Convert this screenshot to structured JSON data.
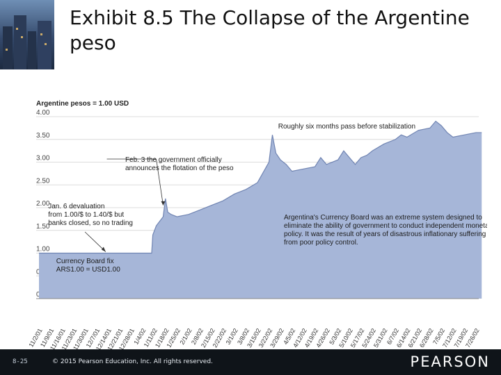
{
  "slide": {
    "title": "Exhibit 8.5  The Collapse of the Argentine peso",
    "page_number": "8-25",
    "copyright": "© 2015 Pearson Education, Inc. All rights reserved.",
    "brand": "PEARSON"
  },
  "colors": {
    "area_fill": "#a6b6d8",
    "area_line": "#7084b2",
    "plot_bg": "#ffffff",
    "grid": "#dcdcdc",
    "footer_bg": "#0f1419"
  },
  "chart_data": {
    "type": "area",
    "title": "",
    "ylabel": "Argentine pesos = 1.00 USD",
    "xlabel": "",
    "ylim": [
      0,
      4
    ],
    "yticks": [
      "0.00",
      "0.50",
      "1.00",
      "1.50",
      "2.00",
      "2.50",
      "3.00",
      "3.50",
      "4.00"
    ],
    "grid": true,
    "xticks": [
      "11/2/01",
      "11/9/01",
      "11/16/01",
      "11/23/01",
      "11/30/01",
      "12/7/01",
      "12/14/01",
      "12/21/01",
      "12/28/01",
      "1/4/02",
      "1/11/02",
      "1/18/02",
      "1/25/02",
      "2/1/02",
      "2/8/02",
      "2/15/02",
      "2/22/02",
      "3/1/02",
      "3/8/02",
      "3/15/02",
      "3/22/02",
      "3/29/02",
      "4/5/02",
      "4/12/02",
      "4/19/02",
      "4/26/02",
      "5/3/02",
      "5/10/02",
      "5/17/02",
      "5/24/02",
      "5/31/02",
      "6/7/02",
      "6/14/02",
      "6/21/02",
      "6/28/02",
      "7/5/02",
      "7/12/02",
      "7/19/02",
      "7/26/02"
    ],
    "series": [
      {
        "values": [
          [
            0,
            1.0
          ],
          [
            9.8,
            1.0
          ],
          [
            9.9,
            1.4
          ],
          [
            10.2,
            1.6
          ],
          [
            10.5,
            1.7
          ],
          [
            10.8,
            1.8
          ],
          [
            11.0,
            2.2
          ],
          [
            11.2,
            1.9
          ],
          [
            11.5,
            1.85
          ],
          [
            12,
            1.8
          ],
          [
            13,
            1.85
          ],
          [
            14,
            1.95
          ],
          [
            15,
            2.05
          ],
          [
            16,
            2.15
          ],
          [
            17,
            2.3
          ],
          [
            18,
            2.4
          ],
          [
            19,
            2.55
          ],
          [
            20,
            3.0
          ],
          [
            20.3,
            3.6
          ],
          [
            20.6,
            3.2
          ],
          [
            21,
            3.05
          ],
          [
            21.5,
            2.95
          ],
          [
            22,
            2.8
          ],
          [
            23,
            2.85
          ],
          [
            24,
            2.9
          ],
          [
            24.5,
            3.1
          ],
          [
            25,
            2.95
          ],
          [
            26,
            3.05
          ],
          [
            26.5,
            3.25
          ],
          [
            27,
            3.1
          ],
          [
            27.5,
            2.95
          ],
          [
            28,
            3.1
          ],
          [
            28.5,
            3.15
          ],
          [
            29,
            3.25
          ],
          [
            30,
            3.4
          ],
          [
            31,
            3.5
          ],
          [
            31.5,
            3.6
          ],
          [
            32,
            3.55
          ],
          [
            33,
            3.7
          ],
          [
            34,
            3.75
          ],
          [
            34.5,
            3.9
          ],
          [
            35,
            3.8
          ],
          [
            35.5,
            3.65
          ],
          [
            36,
            3.55
          ],
          [
            37,
            3.6
          ],
          [
            38,
            3.65
          ],
          [
            38.5,
            3.65
          ]
        ]
      }
    ],
    "annotations": [
      {
        "text": [
          "Roughly six months pass before stabilization"
        ]
      },
      {
        "text": [
          "Feb. 3 the government officially",
          "announces the flotation of the peso"
        ]
      },
      {
        "text": [
          "Jan. 6 devaluation",
          "from 1.00/$ to 1.40/$ but",
          "banks closed, so no trading"
        ]
      },
      {
        "text": [
          "Argentina's Currency Board was an extreme system designed to",
          "eliminate the ability of government to conduct independent monetary",
          "policy. It was the result of years of disastrous inflationary suffering",
          "from poor policy control."
        ]
      },
      {
        "text": [
          "Currency Board fix",
          "ARS1.00 = USD1.00"
        ]
      }
    ]
  }
}
